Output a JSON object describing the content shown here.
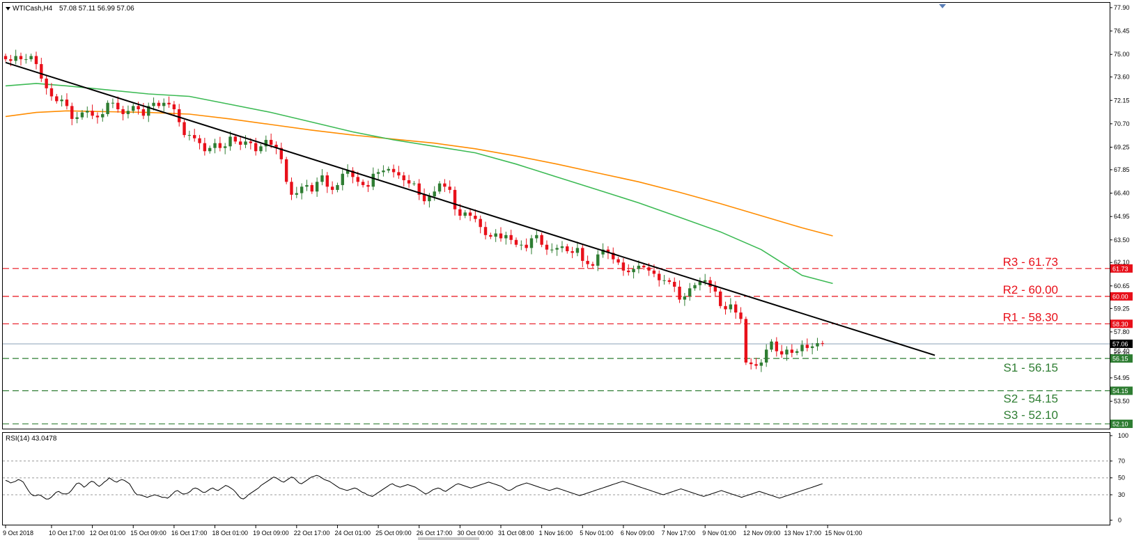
{
  "header": {
    "symbol": "WTICash,H4",
    "ohlc": "57.08 57.11 56.99 57.06"
  },
  "colors": {
    "bull": "#2e7d32",
    "bear": "#e8101a",
    "ema_fast": "#3cba54",
    "ema_slow": "#ff8c00",
    "trendline": "#000000",
    "resistance": "#e8101a",
    "support": "#2e7d32",
    "price_line": "#8aa0b8"
  },
  "chart_data": [
    {
      "type": "candlestick",
      "title": "WTICash,H4",
      "ylim": [
        51.8,
        78.2
      ],
      "y_ticks": [
        "77.90",
        "76.45",
        "75.00",
        "73.60",
        "72.15",
        "70.70",
        "69.25",
        "67.85",
        "66.40",
        "64.95",
        "63.50",
        "62.10",
        "60.65",
        "59.25",
        "57.80",
        "56.40",
        "54.95",
        "53.50"
      ],
      "x_ticks": [
        {
          "label": "9 Oct 2018",
          "i": 0
        },
        {
          "label": "10 Oct 17:00",
          "i": 9
        },
        {
          "label": "12 Oct 01:00",
          "i": 17
        },
        {
          "label": "15 Oct 09:00",
          "i": 25
        },
        {
          "label": "16 Oct 17:00",
          "i": 33
        },
        {
          "label": "18 Oct 01:00",
          "i": 41
        },
        {
          "label": "19 Oct 09:00",
          "i": 49
        },
        {
          "label": "22 Oct 17:00",
          "i": 57
        },
        {
          "label": "24 Oct 01:00",
          "i": 65
        },
        {
          "label": "25 Oct 09:00",
          "i": 73
        },
        {
          "label": "26 Oct 17:00",
          "i": 81
        },
        {
          "label": "30 Oct 00:00",
          "i": 89
        },
        {
          "label": "31 Oct 08:00",
          "i": 97
        },
        {
          "label": "1 Nov 16:00",
          "i": 105
        },
        {
          "label": "5 Nov 01:00",
          "i": 113
        },
        {
          "label": "6 Nov 09:00",
          "i": 121
        },
        {
          "label": "7 Nov 17:00",
          "i": 129
        },
        {
          "label": "9 Nov 01:00",
          "i": 137
        },
        {
          "label": "12 Nov 09:00",
          "i": 145
        },
        {
          "label": "13 Nov 17:00",
          "i": 153
        },
        {
          "label": "15 Nov 01:00",
          "i": 161
        }
      ],
      "closes": [
        74.7,
        74.6,
        74.9,
        74.7,
        74.7,
        74.9,
        74.4,
        73.5,
        72.9,
        72.4,
        72.1,
        72.2,
        71.8,
        71.0,
        71.1,
        71.4,
        71.5,
        71.2,
        71.1,
        71.3,
        72.0,
        72.0,
        71.6,
        71.3,
        71.5,
        71.8,
        71.6,
        71.2,
        71.8,
        72.0,
        71.8,
        72.0,
        71.9,
        71.6,
        70.8,
        70.0,
        70.0,
        69.8,
        69.5,
        69.0,
        69.2,
        69.5,
        69.2,
        69.3,
        69.9,
        69.6,
        69.4,
        69.6,
        69.5,
        69.0,
        69.3,
        69.7,
        69.4,
        69.2,
        68.5,
        67.1,
        66.3,
        66.4,
        66.8,
        66.9,
        66.5,
        67.1,
        67.5,
        66.8,
        66.6,
        66.9,
        67.6,
        67.8,
        67.4,
        67.1,
        66.9,
        66.8,
        67.6,
        67.7,
        67.8,
        67.9,
        67.7,
        67.5,
        67.2,
        67.0,
        67.0,
        66.3,
        65.9,
        66.2,
        66.5,
        67.0,
        66.8,
        66.6,
        65.4,
        65.0,
        65.2,
        65.0,
        64.8,
        64.3,
        63.8,
        63.7,
        63.9,
        63.6,
        63.8,
        63.5,
        63.2,
        63.2,
        63.0,
        63.6,
        63.8,
        63.2,
        62.9,
        62.9,
        63.0,
        63.1,
        62.8,
        62.7,
        63.0,
        62.2,
        62.0,
        61.9,
        62.6,
        62.9,
        62.7,
        62.3,
        62.1,
        61.6,
        61.5,
        61.7,
        61.9,
        61.8,
        61.6,
        61.4,
        61.0,
        61.0,
        60.9,
        60.6,
        59.8,
        60.0,
        60.5,
        60.7,
        60.9,
        61.0,
        60.6,
        60.3,
        59.4,
        59.2,
        59.5,
        59.0,
        58.6,
        55.9,
        55.8,
        55.7,
        55.9,
        56.7,
        57.2,
        56.6,
        56.4,
        56.7,
        56.5,
        56.6,
        57.0,
        56.8,
        56.9,
        57.1,
        57.06
      ],
      "ema_fast_points": [
        [
          0,
          73.05
        ],
        [
          6,
          73.2
        ],
        [
          12,
          73.05
        ],
        [
          20,
          72.8
        ],
        [
          28,
          72.55
        ],
        [
          36,
          72.4
        ],
        [
          44,
          71.9
        ],
        [
          52,
          71.4
        ],
        [
          60,
          70.8
        ],
        [
          68,
          70.2
        ],
        [
          76,
          69.7
        ],
        [
          84,
          69.3
        ],
        [
          92,
          68.9
        ],
        [
          100,
          68.2
        ],
        [
          108,
          67.4
        ],
        [
          116,
          66.6
        ],
        [
          124,
          65.8
        ],
        [
          132,
          64.9
        ],
        [
          140,
          64.0
        ],
        [
          148,
          62.9
        ],
        [
          156,
          61.3
        ],
        [
          162,
          60.8
        ]
      ],
      "ema_slow_points": [
        [
          0,
          71.15
        ],
        [
          6,
          71.4
        ],
        [
          12,
          71.5
        ],
        [
          20,
          71.45
        ],
        [
          28,
          71.4
        ],
        [
          36,
          71.3
        ],
        [
          44,
          71.0
        ],
        [
          52,
          70.65
        ],
        [
          60,
          70.3
        ],
        [
          68,
          70.0
        ],
        [
          76,
          69.75
        ],
        [
          84,
          69.5
        ],
        [
          92,
          69.15
        ],
        [
          100,
          68.7
        ],
        [
          108,
          68.2
        ],
        [
          116,
          67.65
        ],
        [
          124,
          67.1
        ],
        [
          132,
          66.45
        ],
        [
          140,
          65.75
        ],
        [
          148,
          65.0
        ],
        [
          156,
          64.25
        ],
        [
          162,
          63.75
        ]
      ],
      "trendline": {
        "from": [
          0,
          74.5
        ],
        "to": [
          182,
          56.35
        ]
      },
      "levels": [
        {
          "name": "R3 - 61.73",
          "value": 61.73,
          "kind": "resistance",
          "tag": "61.73"
        },
        {
          "name": "R2 - 60.00",
          "value": 60.0,
          "kind": "resistance",
          "tag": "60.00"
        },
        {
          "name": "R1 - 58.30",
          "value": 58.3,
          "kind": "resistance",
          "tag": "58.30"
        },
        {
          "name": "S1 - 56.15",
          "value": 56.15,
          "kind": "support",
          "tag": "56.15"
        },
        {
          "name": "S2 - 54.15",
          "value": 54.15,
          "kind": "support",
          "tag": "54.15"
        },
        {
          "name": "S3 - 52.10",
          "value": 52.1,
          "kind": "support",
          "tag": "52.10"
        }
      ],
      "current_price": {
        "value": 57.06,
        "tag": "57.06",
        "partial_tag": "56.40"
      }
    },
    {
      "type": "line",
      "title": "RSI(14) 43.0478",
      "ylim": [
        0,
        100
      ],
      "y_ticks": [
        "100",
        "70",
        "50",
        "30",
        "0"
      ],
      "guides": [
        70,
        50,
        30
      ],
      "values": [
        47,
        46,
        44,
        45,
        46,
        48,
        47,
        45,
        40,
        35,
        31,
        29,
        29,
        30,
        29,
        27,
        25,
        25,
        27,
        30,
        33,
        34,
        32,
        31,
        31,
        32,
        35,
        39,
        43,
        44,
        42,
        39,
        41,
        44,
        46,
        45,
        42,
        40,
        42,
        45,
        47,
        50,
        48,
        46,
        45,
        47,
        48,
        47,
        45,
        43,
        38,
        33,
        30,
        30,
        29,
        28,
        27,
        28,
        29,
        30,
        29,
        28,
        27,
        27,
        26,
        28,
        31,
        34,
        35,
        33,
        31,
        31,
        32,
        34,
        37,
        38,
        37,
        35,
        33,
        33,
        35,
        37,
        38,
        36,
        35,
        37,
        39,
        41,
        40,
        38,
        36,
        33,
        29,
        26,
        25,
        27,
        30,
        32,
        34,
        36,
        38,
        41,
        43,
        45,
        47,
        49,
        51,
        50,
        48,
        46,
        45,
        47,
        49,
        51,
        50,
        47,
        44,
        43,
        45,
        47,
        49,
        51,
        52,
        53,
        52,
        50,
        48,
        47,
        46,
        44,
        42,
        40,
        38,
        37,
        36,
        35,
        36,
        37,
        38,
        37,
        35,
        33,
        32,
        30,
        29,
        28,
        30,
        32,
        34,
        36,
        38,
        40,
        42,
        43,
        41,
        40,
        39,
        40,
        41,
        42,
        41,
        40,
        39,
        37,
        35,
        33,
        31,
        32,
        34,
        36,
        37,
        38,
        37,
        35,
        34,
        36,
        38,
        40,
        42,
        43,
        42,
        41,
        40,
        39,
        38,
        39,
        40,
        41,
        42,
        43,
        44,
        45,
        44,
        43,
        42,
        41,
        40,
        38,
        36,
        35,
        36,
        38,
        40,
        41,
        42,
        43,
        44,
        43,
        42,
        41,
        40,
        39,
        38,
        37,
        36,
        35,
        36,
        37,
        38,
        37,
        36,
        35,
        34,
        33,
        32,
        31,
        30,
        29,
        30,
        31,
        32,
        33,
        34,
        35,
        36,
        37,
        38,
        39,
        40,
        41,
        42,
        43,
        44,
        45,
        46,
        45,
        44,
        43,
        42,
        41,
        40,
        39,
        38,
        37,
        36,
        35,
        34,
        33,
        32,
        31,
        30,
        31,
        32,
        33,
        34,
        35,
        36,
        37,
        36,
        35,
        34,
        33,
        32,
        31,
        30,
        29,
        28,
        29,
        30,
        31,
        32,
        33,
        34,
        35,
        34,
        33,
        32,
        31,
        30,
        29,
        28,
        27,
        28,
        29,
        30,
        31,
        32,
        33,
        34,
        33,
        32,
        31,
        30,
        29,
        28,
        27,
        26,
        27,
        28,
        29,
        30,
        31,
        32,
        33,
        34,
        35,
        36,
        37,
        38,
        39,
        40,
        41,
        42,
        43
      ]
    }
  ]
}
